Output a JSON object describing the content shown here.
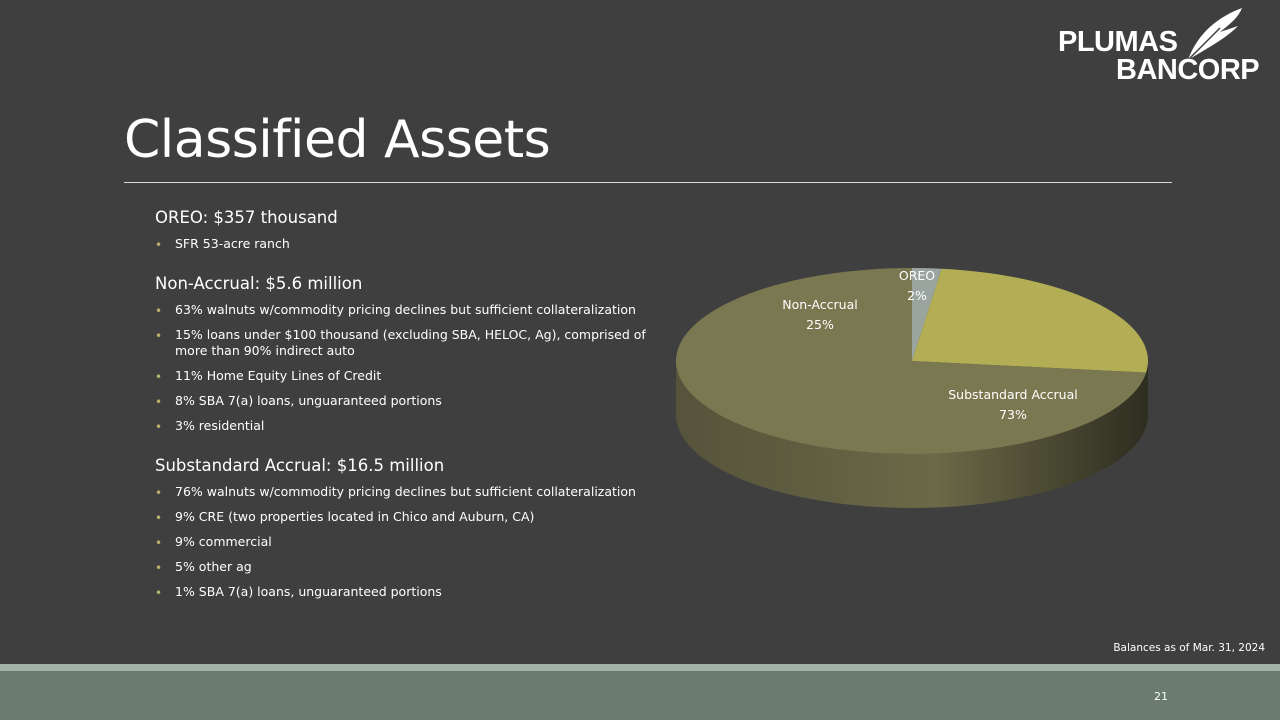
{
  "logo": {
    "line1": "PLUMAS",
    "line2": "BANCORP"
  },
  "title": "Classified Assets",
  "sections": [
    {
      "heading": "OREO: $357 thousand",
      "bullets": [
        "SFR 53-acre ranch"
      ]
    },
    {
      "heading": "Non-Accrual: $5.6 million",
      "bullets": [
        "63% walnuts w/commodity  pricing declines but sufficient collateralization",
        "15% loans under $100 thousand (excluding SBA, HELOC, Ag), comprised of more than 90% indirect auto",
        "11% Home Equity Lines of Credit",
        "8% SBA 7(a) loans, unguaranteed portions",
        "3% residential"
      ]
    },
    {
      "heading": "Substandard Accrual: $16.5 million",
      "bullets": [
        "76% walnuts w/commodity  pricing declines but sufficient collateralization",
        "9% CRE (two properties located in Chico and Auburn,  CA)",
        "9% commercial",
        "5% other ag",
        "1% SBA 7(a) loans, unguaranteed portions"
      ]
    }
  ],
  "chart_data": {
    "type": "pie",
    "style": "3d",
    "slices": [
      {
        "label": "OREO",
        "value": 2,
        "value_label": "2%",
        "color": "#9aa5a0"
      },
      {
        "label": "Non-Accrual",
        "value": 25,
        "value_label": "25%",
        "color": "#b3ae55"
      },
      {
        "label": "Substandard Accrual",
        "value": 73,
        "value_label": "73%",
        "color": "#7a7850"
      }
    ]
  },
  "footnote": "Balances as of Mar. 31, 2024",
  "page_number": "21",
  "colors": {
    "background": "#3f3f3f",
    "bullet": "#b8b36a",
    "footer_bar": "#6b7b6e",
    "footer_stripe": "#a3b2a4"
  }
}
